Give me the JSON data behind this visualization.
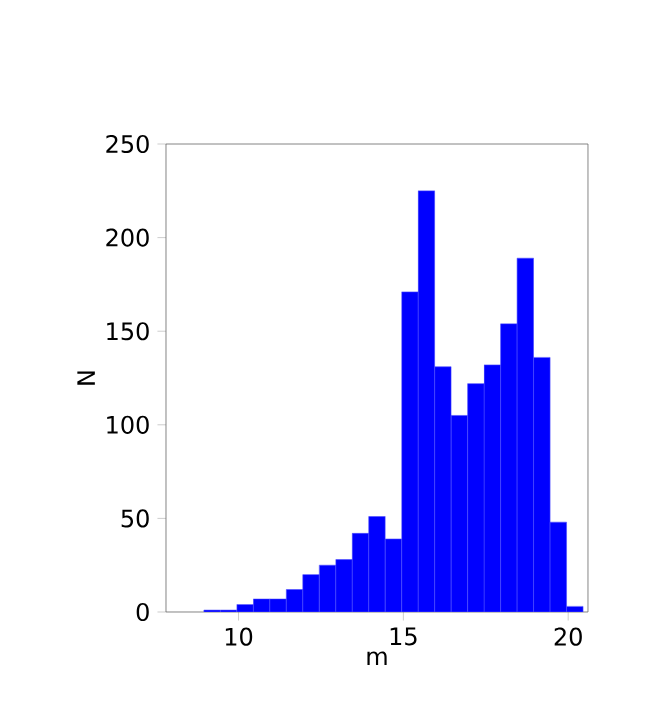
{
  "chart_data": {
    "type": "histogram",
    "xlabel": "m",
    "ylabel": "N",
    "bins": [
      8.95,
      9.45,
      9.95,
      10.45,
      10.95,
      11.45,
      11.95,
      12.45,
      12.95,
      13.45,
      13.95,
      14.45,
      14.95,
      15.45,
      15.95,
      16.45,
      16.95,
      17.45,
      17.95,
      18.45,
      18.95,
      19.45,
      19.95,
      20.45
    ],
    "values": [
      1,
      1,
      4,
      7,
      7,
      12,
      20,
      25,
      28,
      42,
      51,
      39,
      171,
      225,
      131,
      105,
      122,
      132,
      154,
      189,
      136,
      48,
      3
    ],
    "color": "#0000ff",
    "xlim": [
      7.8,
      20.6
    ],
    "ylim": [
      0,
      250
    ],
    "xticks": [
      10,
      15,
      20
    ],
    "yticks": [
      0,
      50,
      100,
      150,
      200,
      250
    ]
  }
}
